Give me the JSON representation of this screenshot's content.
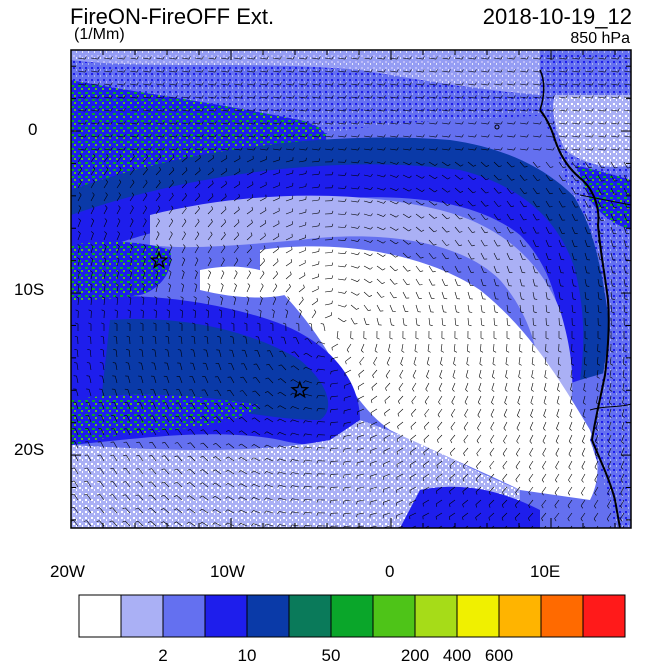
{
  "header": {
    "title": "FireON-FireOFF Ext.",
    "datetime": "2018-10-19_12",
    "units": "(1/Mm)",
    "level": "850 hPa"
  },
  "axes": {
    "lon_labels": [
      "20W",
      "10W",
      "0",
      "10E"
    ],
    "lat_labels": [
      "0",
      "10S",
      "20S"
    ],
    "lon_range": [
      -20,
      15
    ],
    "lat_range": [
      -24.5,
      5.0
    ]
  },
  "markers": [
    {
      "name": "star-marker-1",
      "lon": -14.5,
      "lat": -8.0
    },
    {
      "name": "star-marker-2",
      "lon": -5.7,
      "lat": -16.0
    }
  ],
  "colorbar": {
    "colors": [
      "#ffffff",
      "#aab0f5",
      "#6470f0",
      "#1e1eec",
      "#0a3aa8",
      "#0a7a5a",
      "#0aa62a",
      "#4ec418",
      "#a6dc18",
      "#f0f000",
      "#ffb400",
      "#ff6a00",
      "#ff1a1a"
    ],
    "labels": [
      "2",
      "10",
      "50",
      "200",
      "400",
      "600"
    ]
  }
}
